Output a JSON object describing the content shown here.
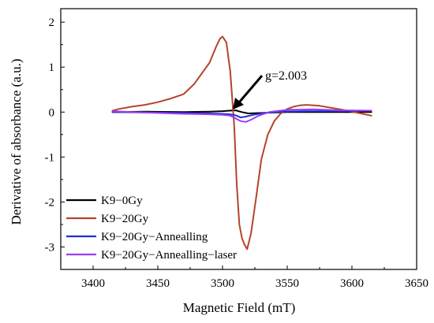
{
  "chart_data": {
    "type": "line",
    "title": "",
    "xlabel": "Magnetic Field (mT)",
    "ylabel": "Derivative of absorbance (a.u.)",
    "xlim": [
      3375,
      3650
    ],
    "ylim": [
      -3.5,
      2.3
    ],
    "xticks": [
      3400,
      3450,
      3500,
      3550,
      3600,
      3650
    ],
    "yticks": [
      -3,
      -2,
      -1,
      0,
      1,
      2
    ],
    "xtick_labels": [
      "3400",
      "3450",
      "3500",
      "3550",
      "3600",
      "3650"
    ],
    "ytick_labels": [
      "-3",
      "-2",
      "-1",
      "0",
      "1",
      "2"
    ],
    "grid": false,
    "legend": {
      "placement": "bottom-left"
    },
    "annotations": [
      {
        "text": "g=2.003",
        "x": 3507,
        "y": 0.05
      }
    ],
    "series": [
      {
        "name": "K9−0Gy",
        "color": "#000000",
        "x": [
          3415,
          3440,
          3470,
          3490,
          3500,
          3505,
          3510,
          3515,
          3520,
          3530,
          3550,
          3580,
          3615
        ],
        "y": [
          0.0,
          0.01,
          0.0,
          0.01,
          0.02,
          0.03,
          0.04,
          0.0,
          -0.03,
          -0.02,
          0.0,
          0.0,
          0.0
        ]
      },
      {
        "name": "K9−20Gy",
        "color": "#b5442a",
        "x": [
          3415,
          3420,
          3430,
          3440,
          3450,
          3460,
          3470,
          3478,
          3485,
          3490,
          3495,
          3498,
          3500,
          3503,
          3506,
          3509,
          3511,
          3513,
          3515,
          3517,
          3519,
          3522,
          3526,
          3530,
          3535,
          3540,
          3545,
          3550,
          3555,
          3560,
          3565,
          3575,
          3585,
          3595,
          3605,
          3615
        ],
        "y": [
          0.03,
          0.07,
          0.12,
          0.16,
          0.22,
          0.3,
          0.4,
          0.62,
          0.9,
          1.1,
          1.45,
          1.63,
          1.68,
          1.55,
          0.9,
          -0.3,
          -1.6,
          -2.5,
          -2.8,
          -2.95,
          -3.05,
          -2.7,
          -1.9,
          -1.05,
          -0.5,
          -0.2,
          -0.03,
          0.07,
          0.12,
          0.15,
          0.16,
          0.14,
          0.09,
          0.04,
          -0.02,
          -0.08
        ]
      },
      {
        "name": "K9−20Gy−Annealling",
        "color": "#1f2fd6",
        "x": [
          3415,
          3440,
          3470,
          3490,
          3500,
          3506,
          3510,
          3514,
          3518,
          3524,
          3532,
          3545,
          3565,
          3590,
          3615
        ],
        "y": [
          0.0,
          -0.01,
          -0.02,
          -0.03,
          -0.04,
          -0.05,
          -0.07,
          -0.12,
          -0.1,
          -0.06,
          -0.02,
          0.01,
          0.02,
          0.02,
          0.03
        ]
      },
      {
        "name": "K9−20Gy−Annealling−laser",
        "color": "#9b3df0",
        "x": [
          3415,
          3430,
          3450,
          3470,
          3490,
          3500,
          3506,
          3510,
          3514,
          3518,
          3522,
          3528,
          3536,
          3550,
          3570,
          3590,
          3615
        ],
        "y": [
          0.02,
          0.0,
          -0.02,
          -0.04,
          -0.05,
          -0.06,
          -0.08,
          -0.14,
          -0.2,
          -0.22,
          -0.17,
          -0.08,
          0.0,
          0.05,
          0.06,
          0.04,
          0.03
        ]
      }
    ]
  }
}
